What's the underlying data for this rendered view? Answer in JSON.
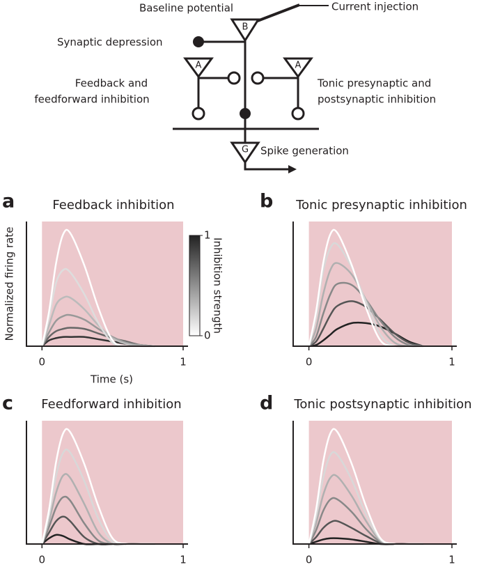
{
  "diagram": {
    "baseline": "Baseline potential",
    "current": "Current injection",
    "depression": "Synaptic depression",
    "left": [
      "Feedback and",
      "feedforward inhibition"
    ],
    "right": [
      "Tonic presynaptic and",
      "postsynaptic inhibition"
    ],
    "spike": "Spike generation",
    "cells": [
      "B",
      "A",
      "A",
      "G"
    ]
  },
  "chart_data": [
    {
      "type": "line",
      "panel": "a",
      "title": "Feedback inhibition",
      "xlabel": "Time (s)",
      "ylabel": "Normalized firing rate",
      "x": [
        0,
        0.05,
        0.1,
        0.15,
        0.2,
        0.3,
        0.4,
        0.5,
        0.6,
        0.7,
        0.8
      ],
      "xlim": [
        -0.11,
        1
      ],
      "ylim": [
        0,
        1.08
      ],
      "xticks": [
        0,
        1
      ],
      "band": {
        "from": 0,
        "to": 1,
        "color": "#ecc8cc"
      },
      "colorbar": {
        "label": "Inhibition strength",
        "ticks": [
          0,
          1
        ],
        "colors": [
          "#ffffff",
          "#222222"
        ]
      },
      "series": [
        {
          "color": "#333333",
          "values": [
            0,
            0.05,
            0.07,
            0.08,
            0.08,
            0.08,
            0.06,
            0.04,
            0.02,
            0.01,
            0
          ]
        },
        {
          "color": "#666666",
          "values": [
            0,
            0.08,
            0.13,
            0.15,
            0.16,
            0.15,
            0.11,
            0.07,
            0.04,
            0.01,
            0
          ]
        },
        {
          "color": "#999999",
          "values": [
            0,
            0.12,
            0.22,
            0.26,
            0.27,
            0.23,
            0.15,
            0.08,
            0.03,
            0.01,
            0
          ]
        },
        {
          "color": "#bbbbbb",
          "values": [
            0,
            0.18,
            0.36,
            0.42,
            0.42,
            0.32,
            0.18,
            0.07,
            0.02,
            0,
            0
          ]
        },
        {
          "color": "#dddddd",
          "values": [
            0,
            0.25,
            0.55,
            0.66,
            0.64,
            0.45,
            0.2,
            0.03,
            0,
            0,
            0
          ]
        },
        {
          "color": "#ffffff",
          "values": [
            0,
            0.3,
            0.72,
            0.97,
            0.98,
            0.7,
            0.33,
            0.05,
            0,
            0,
            0
          ]
        }
      ]
    },
    {
      "type": "line",
      "panel": "b",
      "title": "Tonic presynaptic inhibition",
      "x": [
        0,
        0.05,
        0.1,
        0.15,
        0.2,
        0.3,
        0.4,
        0.5,
        0.6,
        0.7,
        0.8
      ],
      "xlim": [
        -0.11,
        1
      ],
      "ylim": [
        0,
        1.08
      ],
      "xticks": [
        0,
        1
      ],
      "band": {
        "from": 0,
        "to": 1,
        "color": "#ecc8cc"
      },
      "series": [
        {
          "color": "#222222",
          "values": [
            0,
            0.01,
            0.05,
            0.1,
            0.15,
            0.2,
            0.2,
            0.17,
            0.11,
            0.04,
            0
          ]
        },
        {
          "color": "#555555",
          "values": [
            0,
            0.04,
            0.15,
            0.27,
            0.35,
            0.39,
            0.34,
            0.23,
            0.11,
            0.03,
            0
          ]
        },
        {
          "color": "#888888",
          "values": [
            0,
            0.08,
            0.28,
            0.45,
            0.54,
            0.53,
            0.4,
            0.22,
            0.08,
            0.01,
            0
          ]
        },
        {
          "color": "#b0b0b0",
          "values": [
            0,
            0.15,
            0.45,
            0.66,
            0.72,
            0.62,
            0.4,
            0.17,
            0.03,
            0,
            0
          ]
        },
        {
          "color": "#d8d8d8",
          "values": [
            0,
            0.25,
            0.65,
            0.85,
            0.88,
            0.68,
            0.38,
            0.1,
            0,
            0,
            0
          ]
        },
        {
          "color": "#ffffff",
          "values": [
            0,
            0.3,
            0.72,
            0.97,
            0.98,
            0.7,
            0.33,
            0.05,
            0,
            0,
            0
          ]
        }
      ]
    },
    {
      "type": "line",
      "panel": "c",
      "title": "Feedforward inhibition",
      "x": [
        0,
        0.05,
        0.1,
        0.15,
        0.2,
        0.3,
        0.4,
        0.5,
        0.6,
        0.7,
        0.8
      ],
      "xlim": [
        -0.11,
        1
      ],
      "ylim": [
        0,
        1.08
      ],
      "xticks": [
        0,
        1
      ],
      "band": {
        "from": 0,
        "to": 1,
        "color": "#ecc8cc"
      },
      "series": [
        {
          "color": "#222222",
          "values": [
            0,
            0.05,
            0.08,
            0.07,
            0.04,
            0,
            0,
            0,
            0,
            0,
            0
          ]
        },
        {
          "color": "#555555",
          "values": [
            0,
            0.1,
            0.2,
            0.24,
            0.2,
            0.06,
            0,
            0,
            0,
            0,
            0
          ]
        },
        {
          "color": "#888888",
          "values": [
            0,
            0.15,
            0.32,
            0.41,
            0.38,
            0.18,
            0.03,
            0,
            0,
            0,
            0
          ]
        },
        {
          "color": "#b0b0b0",
          "values": [
            0,
            0.2,
            0.45,
            0.6,
            0.58,
            0.35,
            0.1,
            0,
            0,
            0,
            0
          ]
        },
        {
          "color": "#d8d8d8",
          "values": [
            0,
            0.25,
            0.6,
            0.8,
            0.8,
            0.55,
            0.22,
            0.02,
            0,
            0,
            0
          ]
        },
        {
          "color": "#ffffff",
          "values": [
            0,
            0.3,
            0.72,
            0.97,
            0.98,
            0.7,
            0.33,
            0.05,
            0,
            0,
            0
          ]
        }
      ]
    },
    {
      "type": "line",
      "panel": "d",
      "title": "Tonic postsynaptic inhibition",
      "x": [
        0,
        0.05,
        0.1,
        0.15,
        0.2,
        0.3,
        0.4,
        0.5,
        0.6,
        0.7,
        0.8
      ],
      "xlim": [
        -0.11,
        1
      ],
      "ylim": [
        0,
        1.08
      ],
      "xticks": [
        0,
        1
      ],
      "band": {
        "from": 0,
        "to": 1,
        "color": "#ecc8cc"
      },
      "series": [
        {
          "color": "#222222",
          "values": [
            0,
            0.02,
            0.04,
            0.05,
            0.05,
            0.04,
            0.02,
            0,
            0,
            0,
            0
          ]
        },
        {
          "color": "#555555",
          "values": [
            0,
            0.06,
            0.14,
            0.19,
            0.2,
            0.14,
            0.07,
            0.01,
            0,
            0,
            0
          ]
        },
        {
          "color": "#888888",
          "values": [
            0,
            0.12,
            0.29,
            0.39,
            0.39,
            0.28,
            0.13,
            0.02,
            0,
            0,
            0
          ]
        },
        {
          "color": "#b0b0b0",
          "values": [
            0,
            0.18,
            0.43,
            0.58,
            0.59,
            0.42,
            0.2,
            0.03,
            0,
            0,
            0
          ]
        },
        {
          "color": "#d8d8d8",
          "values": [
            0,
            0.24,
            0.58,
            0.78,
            0.78,
            0.56,
            0.26,
            0.04,
            0,
            0,
            0
          ]
        },
        {
          "color": "#ffffff",
          "values": [
            0,
            0.3,
            0.72,
            0.97,
            0.98,
            0.7,
            0.33,
            0.05,
            0,
            0,
            0
          ]
        }
      ]
    }
  ]
}
